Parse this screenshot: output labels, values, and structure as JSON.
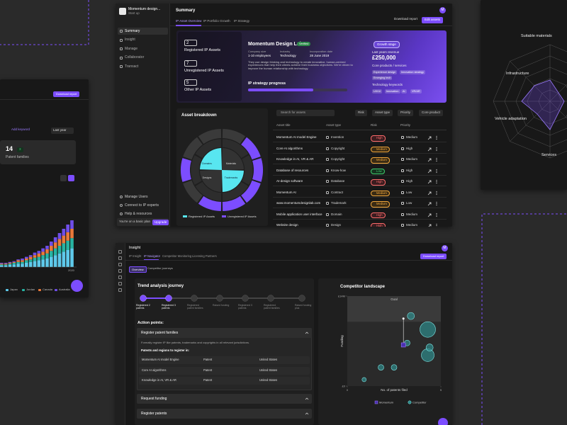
{
  "main": {
    "company": "Momentum design...",
    "stage": "Start up",
    "avatar": "M",
    "nav": [
      "Summary",
      "Insight",
      "Manage",
      "Collaborator",
      "Transact"
    ],
    "nav_bottom": [
      "Manage Users",
      "Connect to IP experts",
      "Help & resources"
    ],
    "plan": "You're on a basic plan",
    "upgrade": "Upgrade",
    "title": "Summary",
    "download": "Download report",
    "edit": "Edit assets",
    "tabs": [
      "IP Asset Overview",
      "IP Portfolio Growth",
      "IP Strategy"
    ],
    "counts": [
      {
        "value": "2",
        "label": "Registered IP Assets"
      },
      {
        "value": "7",
        "label": "Unregistered IP Assets"
      },
      {
        "value": "5",
        "label": "Other IP Assets"
      }
    ],
    "profile": {
      "name": "Momentum Design Lab",
      "verified": "Verified",
      "facts": [
        {
          "label": "Company size",
          "value": "1-10 employees"
        },
        {
          "label": "Industry",
          "value": "Technology"
        },
        {
          "label": "Incorporation date",
          "value": "28 June 2019"
        }
      ],
      "description": "They use design thinking and technology to create innovative, human-centred experiences that help their clients achieve their business objectives. We're driven to improve the human relationship with technology.",
      "progress_label": "IP strategy progress",
      "growth": "Growth stage",
      "revenue_label": "Last years revenue",
      "revenue": "£250,000",
      "products_label": "Core products / services",
      "products": [
        "Experience design",
        "Innovation strategy",
        "Emerging tech"
      ],
      "keywords_label": "Technology keywords",
      "keywords": [
        "UX/UI",
        "Innovation",
        "AI",
        "VR/AR"
      ]
    },
    "breakdown": {
      "title": "Asset breakdown",
      "inner": [
        "Domains",
        "Materials",
        "Designs",
        "Trademarks"
      ],
      "legend": [
        "Registered IP Assets",
        "Unregistered IP Assets"
      ]
    },
    "table": {
      "search": "Search for assets",
      "filters": [
        "Risk",
        "Asset type",
        "Priority",
        "Core product"
      ],
      "columns": [
        "Asset title",
        "Asset type",
        "Risk",
        "Priority"
      ],
      "rows": [
        [
          "Momentum AI model Engine",
          "Invention",
          "High",
          "Medium"
        ],
        [
          "Core AI algorithms",
          "Copyright",
          "Medium",
          "High"
        ],
        [
          "Knowledge in AI, VR & AR",
          "Copyright",
          "Medium",
          "Medium"
        ],
        [
          "Database of resources",
          "Know-how",
          "Low",
          "High"
        ],
        [
          "AI-design software",
          "Database",
          "High",
          "High"
        ],
        [
          "Momentum AI",
          "Contract",
          "Medium",
          "Low"
        ],
        [
          "www.momentumdesignlab.com",
          "Trademark",
          "Medium",
          "Low"
        ],
        [
          "Mobile application user interface",
          "Domain",
          "High",
          "Medium"
        ],
        [
          "Website design",
          "Design",
          "High",
          "Medium"
        ]
      ]
    }
  },
  "insight": {
    "title": "Insight",
    "avatar": "M",
    "download": "Download report",
    "tabs": [
      "IP Insight",
      "IP Navigator",
      "Competitor Monitoring",
      "Licensing Partners"
    ],
    "subtabs": [
      "Overview",
      "Competitor journeys"
    ],
    "journey_title": "Trend analysis journey",
    "steps": [
      "Registered 2 patents",
      "Registered 3 patents",
      "Registered patent families",
      "Raised funding",
      "Registered 3 patents",
      "Registered patent families",
      "Raised funding plus"
    ],
    "action_title": "Action points:",
    "accordion": {
      "title": "Register patent families",
      "description": "Formally register IP like patents, trademarks and copyrights in all relevant jurisdictions.",
      "subtitle": "Patents and regions to register in:",
      "rows": [
        [
          "Momentum AI model Engine",
          "Patent",
          "United States"
        ],
        [
          "Core AI algorithms",
          "Patent",
          "United States"
        ],
        [
          "Knowledge in AI, VR & AR",
          "Patent",
          "United States"
        ]
      ]
    },
    "collapsed": [
      "Request funding",
      "Register patents"
    ]
  },
  "competitor_landscape": {
    "title": "Competitor landscape",
    "goal": "Goal",
    "xlabel": "No. of patents filed",
    "ylabel": "Funding",
    "xlim": [
      0,
      5
    ],
    "ylim": [
      0,
      14
    ],
    "xticks": [
      0,
      5
    ],
    "yticks": [
      {
        "value": 14,
        "label": "£14M"
      },
      {
        "value": 0,
        "label": "£0"
      }
    ],
    "momentum": {
      "x": 3.0,
      "y": 6.4
    },
    "goal_point": {
      "x": 3.0,
      "y": 10.5
    },
    "competitors": [
      {
        "x": 4.3,
        "y": 8.8,
        "size": 11
      },
      {
        "x": 3.4,
        "y": 10.9,
        "size": 5
      },
      {
        "x": 4.3,
        "y": 4.8,
        "size": 9
      },
      {
        "x": 4.4,
        "y": 6.0,
        "size": 5
      },
      {
        "x": 3.2,
        "y": 6.7,
        "size": 4
      },
      {
        "x": 2.5,
        "y": 2.9,
        "size": 4
      },
      {
        "x": 1.8,
        "y": 2.9,
        "size": 4
      },
      {
        "x": 0.9,
        "y": 1.0,
        "size": 3
      }
    ],
    "legend": [
      "Momentum",
      "Competitor"
    ]
  },
  "left_panel": {
    "download": "Download report",
    "keyword": "Add keyword",
    "period": "Last year",
    "count": "14",
    "badge": "3",
    "count_label": "Patent families",
    "year": "2020",
    "chart": {
      "series": [
        {
          "name": "Japan",
          "color": "#5ec9ea",
          "values": [
            2,
            2,
            3,
            3,
            4,
            4,
            5,
            6,
            7,
            8,
            9,
            10,
            12,
            14,
            16,
            18,
            20,
            22
          ]
        },
        {
          "name": "Jordan",
          "color": "#27b3a2",
          "values": [
            1,
            1,
            1,
            2,
            2,
            2,
            3,
            3,
            4,
            4,
            5,
            6,
            7,
            8,
            9,
            10,
            11,
            12
          ]
        },
        {
          "name": "Canada",
          "color": "#e9793a",
          "values": [
            1,
            1,
            1,
            1,
            2,
            2,
            2,
            3,
            3,
            4,
            4,
            5,
            6,
            7,
            8,
            9,
            10,
            11
          ]
        },
        {
          "name": "Australia",
          "color": "#6f4ee8",
          "values": [
            1,
            1,
            1,
            1,
            1,
            2,
            2,
            2,
            3,
            3,
            4,
            4,
            5,
            6,
            7,
            8,
            9,
            10
          ]
        }
      ]
    }
  },
  "radar": {
    "labels": [
      "Suitable materials",
      "Infrastructure",
      "Vehicle adaptation",
      "Services"
    ]
  }
}
